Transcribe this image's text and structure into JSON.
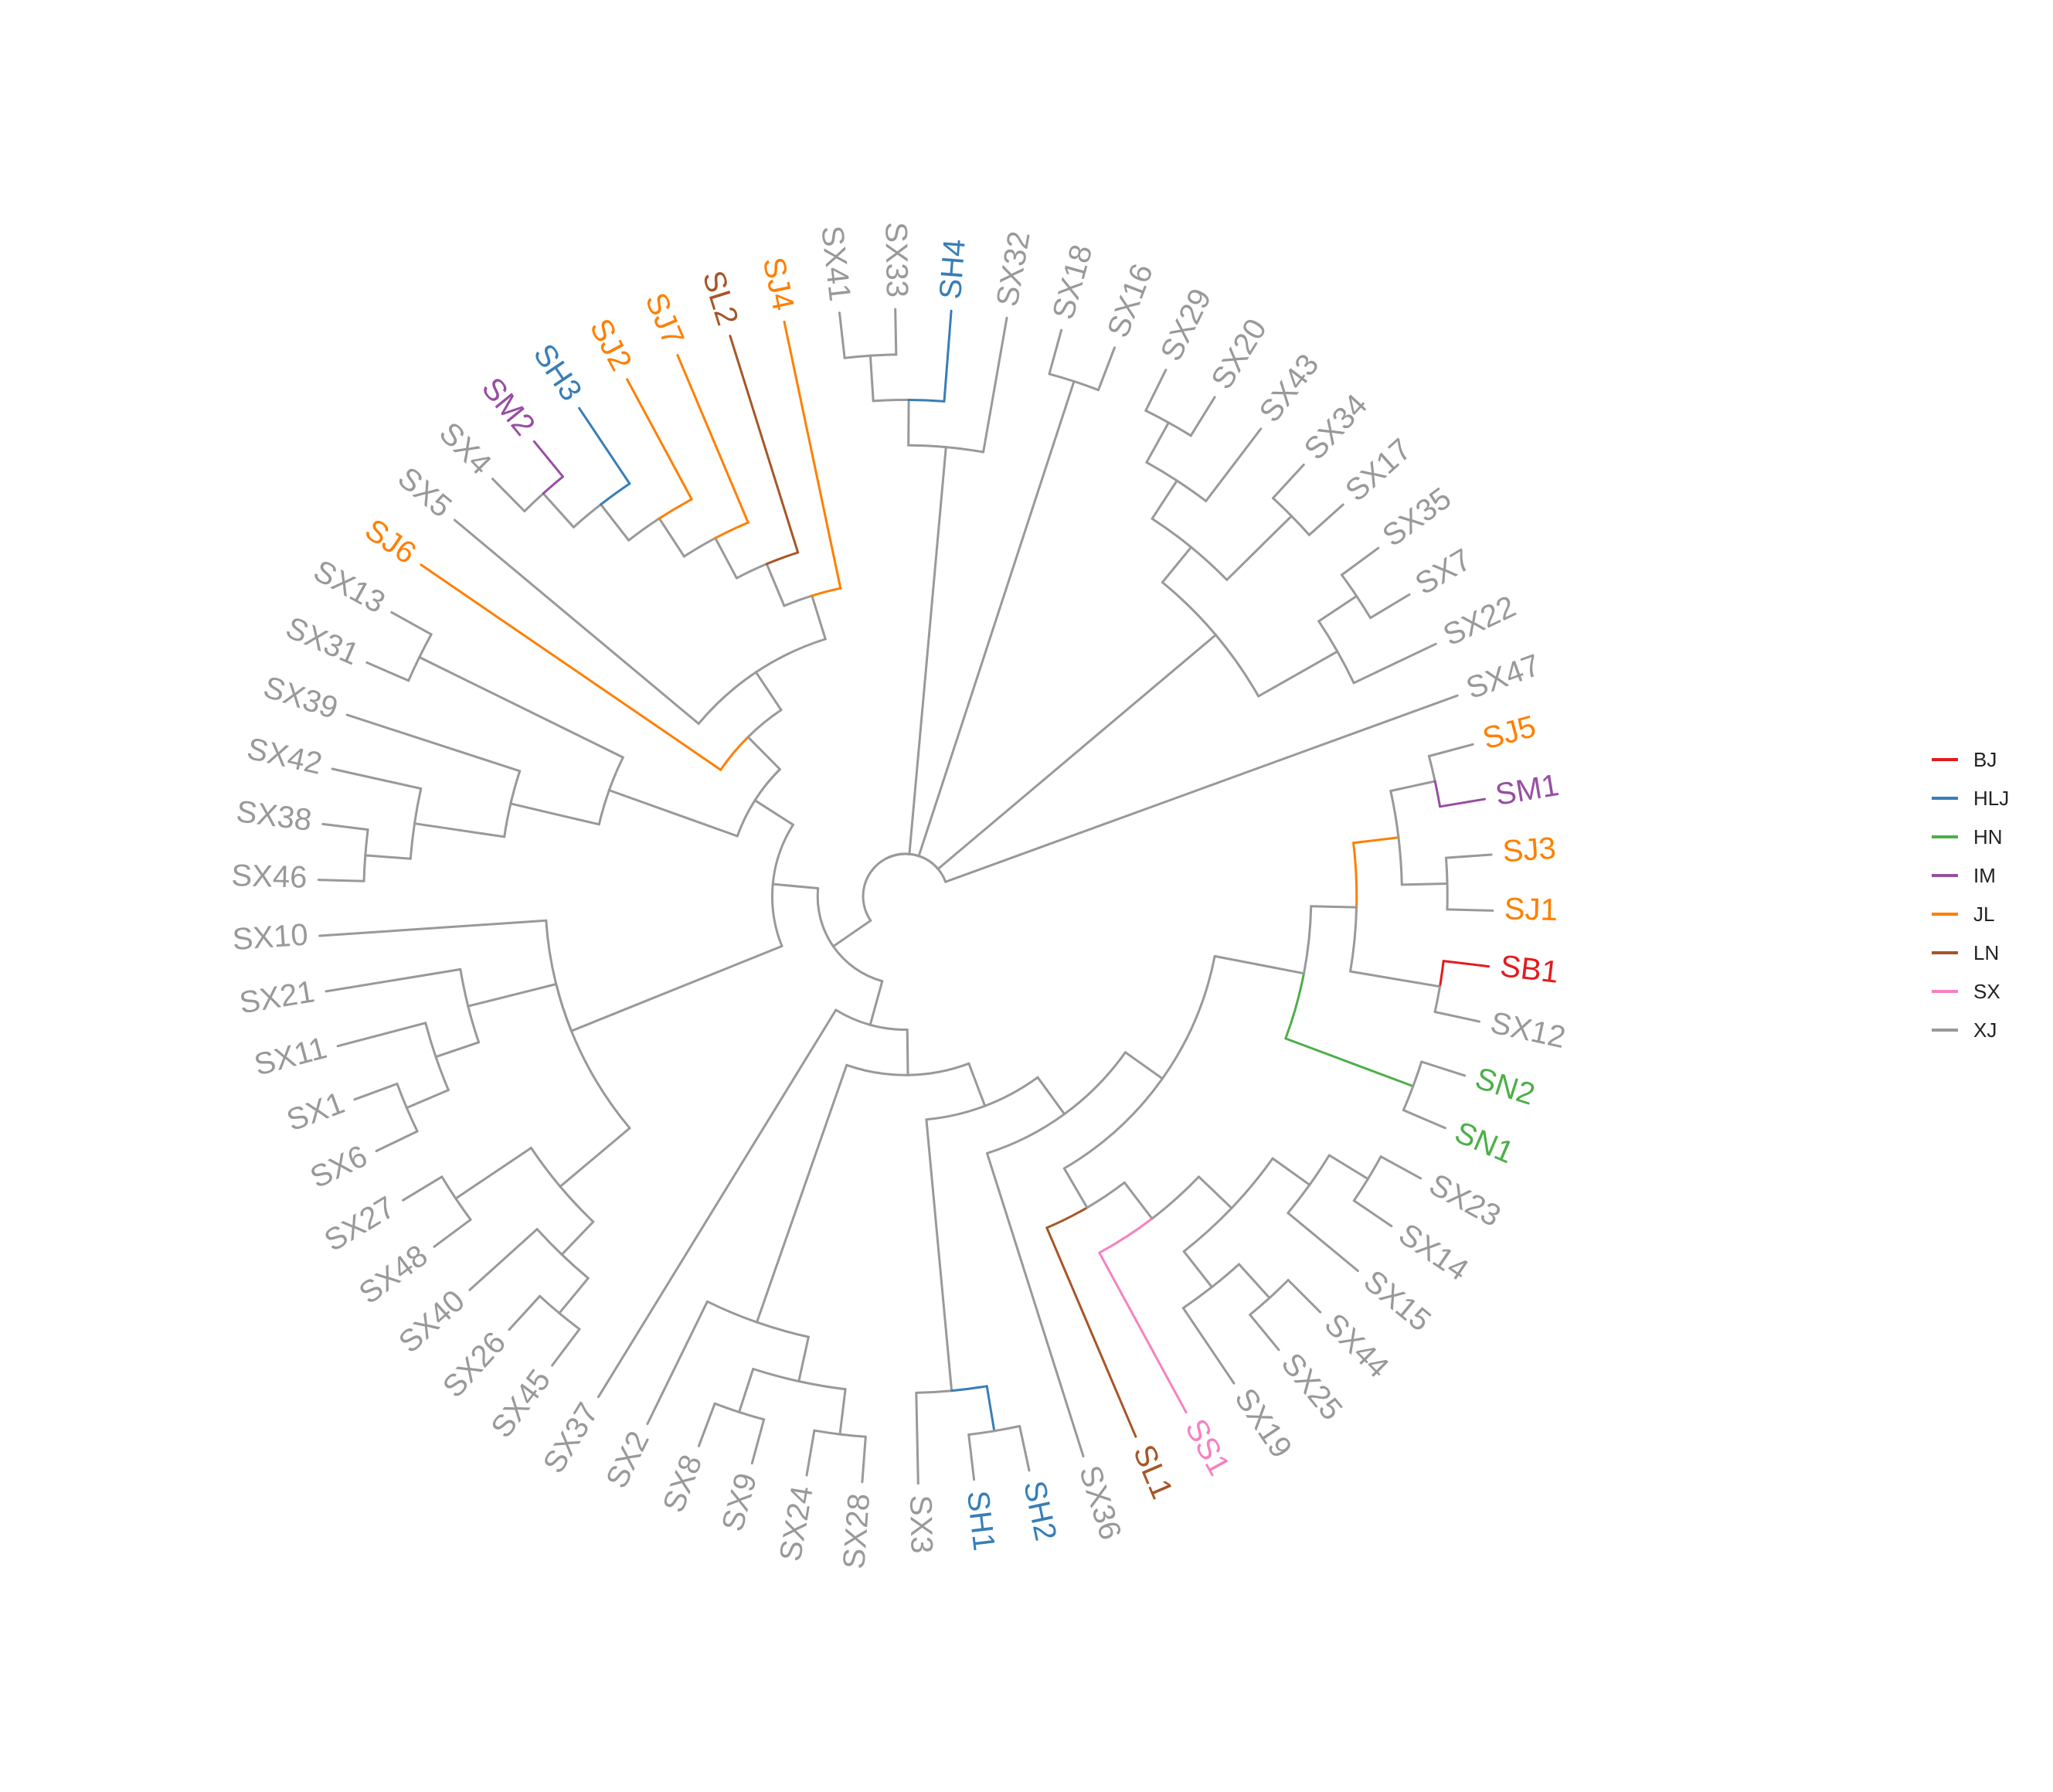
{
  "tree": {
    "type": "circular-dendrogram",
    "newick": "(((SX37,((SX2,((SX8,SX9),(SX24,SX28))),((SX3,(SH1,SH2)),(SX36,((SL1,(SS1,((SX19,(SX25,SX44)),(SX15,(SX14,SX23))))),(((SN2,SN1),(((SJ5,SM1),(SJ3,SJ1)),(SB1,SX12))))))))),(((SX10,((SX21,(SX11,(SX1,SX6)))),((SX27,SX48),(SX40,(SX26,SX45))))),(((SX13,SX31),((SX39,((SX42,(SX38,SX46)))))),(SJ6,(SX5,((((((SX4,SM2),SH3),SJ2),SJ7),SL2),SJ4)))))),(((SX41,SX33),SH4),SX32),(SX18,SX16),((((SX29,SX20),SX43),(SX34,SX17)),((SX35,SX7),SX22)),SX47);",
    "tip_order": [
      "SJ5",
      "SM1",
      "SJ3",
      "SJ1",
      "SB1",
      "SX12",
      "SN2",
      "SN1",
      "SX23",
      "SX14",
      "SX15",
      "SX44",
      "SX25",
      "SX19",
      "SS1",
      "SL1",
      "SX36",
      "SH2",
      "SH1",
      "SX3",
      "SX28",
      "SX24",
      "SX9",
      "SX8",
      "SX2",
      "SX37",
      "SX45",
      "SX26",
      "SX40",
      "SX48",
      "SX27",
      "SX6",
      "SX1",
      "SX11",
      "SX21",
      "SX10",
      "SX46",
      "SX38",
      "SX42",
      "SX39",
      "SX31",
      "SX13",
      "SJ6",
      "SX5",
      "SX4",
      "SM2",
      "SH3",
      "SJ2",
      "SJ7",
      "SL2",
      "SJ4",
      "SX41",
      "SX33",
      "SH4",
      "SX32",
      "SX18",
      "SX16",
      "SX29",
      "SX20",
      "SX43",
      "SX34",
      "SX17",
      "SX35",
      "SX7",
      "SX22",
      "SX47"
    ],
    "tip_groups": {
      "SB1": "BJ",
      "SH1": "HLJ",
      "SH2": "HLJ",
      "SH3": "HLJ",
      "SH4": "HLJ",
      "SN1": "HN",
      "SN2": "HN",
      "SM1": "IM",
      "SM2": "IM",
      "SJ1": "JL",
      "SJ2": "JL",
      "SJ3": "JL",
      "SJ4": "JL",
      "SJ5": "JL",
      "SJ6": "JL",
      "SJ7": "JL",
      "SL1": "LN",
      "SL2": "LN",
      "SS1": "SX"
    },
    "default_group": "XJ",
    "branch_colors": [
      {
        "tip": "SJ6",
        "group": "JL"
      },
      {
        "tip": "SJ4",
        "group": "JL"
      },
      {
        "tip": "SJ7",
        "group": "JL"
      },
      {
        "tip": "SJ2",
        "group": "JL"
      },
      {
        "tip": "SL2",
        "group": "LN"
      },
      {
        "tip": "SH3",
        "group": "HLJ"
      },
      {
        "tip": "SM2",
        "group": "IM"
      },
      {
        "tip": "SH4",
        "group": "HLJ"
      },
      {
        "tip": "SL1",
        "group": "LN"
      },
      {
        "tip": "SS1",
        "group": "SX"
      },
      {
        "tip": "SB1",
        "group": "BJ"
      },
      {
        "tip": "SM1",
        "group": "IM"
      },
      {
        "clade": [
          "SH1",
          "SH2"
        ],
        "group": "HLJ"
      },
      {
        "clade": [
          "SN2",
          "SN1"
        ],
        "group": "HN"
      },
      {
        "clade": [
          "SJ5",
          "SM1",
          "SJ3",
          "SJ1"
        ],
        "group": "JL"
      }
    ]
  },
  "legend": [
    {
      "label": "BJ",
      "color": "#e41a1c"
    },
    {
      "label": "HLJ",
      "color": "#377eb8"
    },
    {
      "label": "HN",
      "color": "#4daf4a"
    },
    {
      "label": "IM",
      "color": "#984ea3"
    },
    {
      "label": "JL",
      "color": "#ff7f00"
    },
    {
      "label": "LN",
      "color": "#a65628"
    },
    {
      "label": "SX",
      "color": "#f781bf"
    },
    {
      "label": "XJ",
      "color": "#999999"
    }
  ]
}
